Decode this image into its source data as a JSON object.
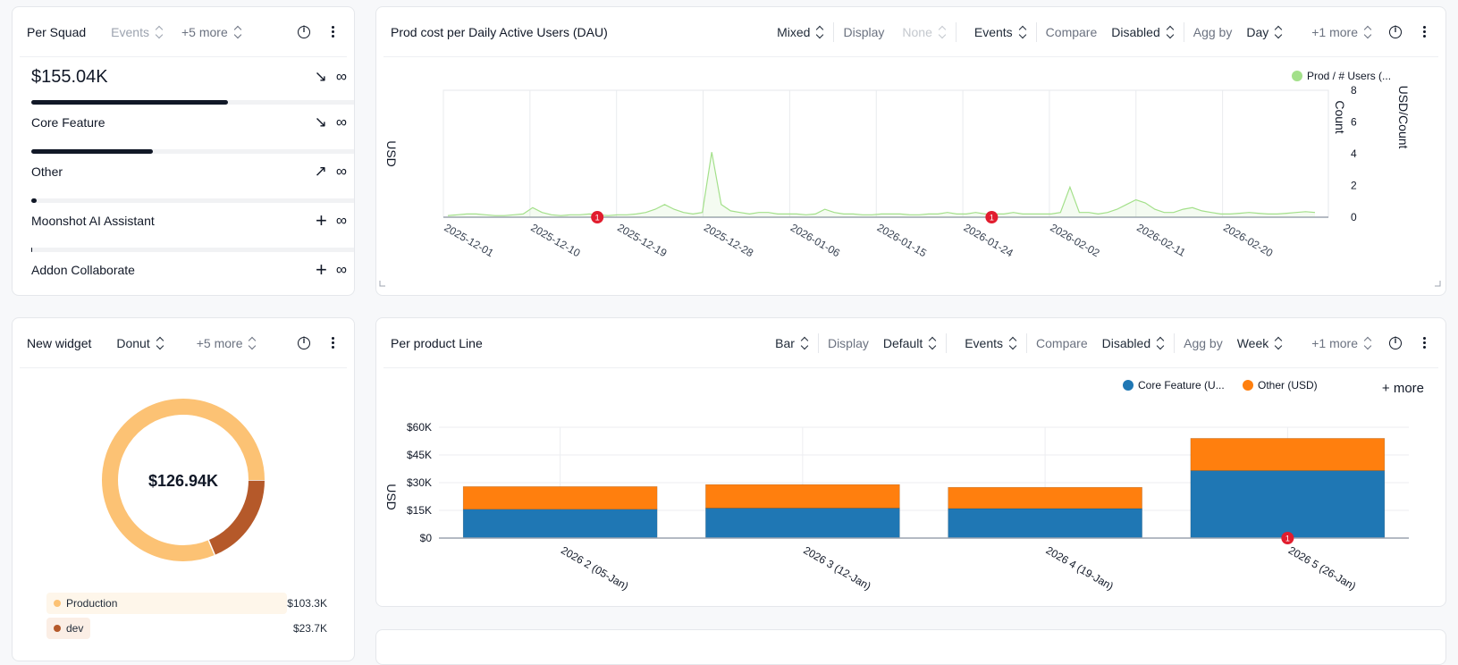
{
  "squad": {
    "title": "Per Squad",
    "events_label": "Events",
    "more_label": "+5 more",
    "total": "$155.04K",
    "total_icon": "arrow-down-right-icon",
    "infinity": "∞",
    "items": [
      {
        "label": "Core Feature",
        "share": 0.6,
        "trend": "arrow-down-right-icon"
      },
      {
        "label": "Other",
        "share": 0.37,
        "trend": "arrow-up-right-icon"
      },
      {
        "label": "Moonshot AI Assistant",
        "share": 0.01,
        "trend": "plus-icon"
      },
      {
        "label": "Addon Collaborate",
        "share": 0.0,
        "trend": "plus-icon"
      }
    ]
  },
  "dau": {
    "title": "Prod cost per Daily Active Users (DAU)",
    "type_label": "Mixed",
    "display_label": "Display",
    "display_value": "None",
    "events_label": "Events",
    "compare_label": "Compare",
    "compare_value": "Disabled",
    "agg_label": "Agg by",
    "agg_value": "Day",
    "more_label": "+1 more"
  },
  "widget": {
    "title": "New widget",
    "type_label": "Donut",
    "more_label": "+5 more",
    "center_value": "$126.94K",
    "legend": [
      {
        "label": "Production",
        "value": "$103.3K",
        "color": "#fcc274",
        "bg": "#fef6ea"
      },
      {
        "label": "dev",
        "value": "$23.7K",
        "color": "#b5592a",
        "bg": "#fbeee5"
      }
    ]
  },
  "product": {
    "title": "Per product Line",
    "type_label": "Bar",
    "display_label": "Display",
    "display_value": "Default",
    "events_label": "Events",
    "compare_label": "Compare",
    "compare_value": "Disabled",
    "agg_label": "Agg by",
    "agg_value": "Week",
    "more_label": "+1 more",
    "legend_more": "+ more"
  },
  "chart_data": [
    {
      "type": "line",
      "ylabel": "USD",
      "y2label": "Count",
      "y3label": "USD/Count",
      "legend": [
        "Prod / # Users (..."
      ],
      "legend_placement": "top-right",
      "series_color": "#a3e08a",
      "y2_ticks": [
        "0",
        "2",
        "4",
        "6",
        "8"
      ],
      "y2lim": [
        0,
        8
      ],
      "x_ticks": [
        "2025-12-01",
        "2025-12-10",
        "2025-12-19",
        "2025-12-28",
        "2026-01-06",
        "2026-01-15",
        "2026-01-24",
        "2026-02-02",
        "2026-02-11",
        "2026-02-20"
      ],
      "x_start": "2025-12-01",
      "values": [
        0.1,
        0.15,
        0.2,
        0.2,
        0.15,
        0.1,
        0.1,
        0.15,
        0.2,
        0.6,
        0.3,
        0.15,
        0.1,
        0.15,
        0.15,
        0.2,
        0.15,
        0.1,
        0.15,
        0.15,
        0.2,
        0.3,
        0.5,
        0.8,
        0.5,
        0.3,
        0.2,
        0.3,
        4.1,
        0.8,
        0.4,
        0.3,
        0.2,
        0.3,
        0.3,
        0.2,
        0.2,
        0.2,
        0.15,
        0.2,
        0.5,
        0.3,
        0.2,
        0.2,
        0.15,
        0.15,
        0.2,
        0.2,
        0.2,
        0.15,
        0.15,
        0.2,
        0.2,
        0.3,
        0.2,
        0.2,
        0.3,
        0.2,
        0.2,
        0.2,
        0.3,
        0.2,
        0.2,
        0.2,
        0.2,
        0.3,
        1.9,
        0.3,
        0.3,
        0.2,
        0.3,
        0.5,
        0.8,
        1.1,
        0.9,
        0.5,
        0.3,
        0.3,
        0.5,
        0.6,
        0.4,
        0.3,
        0.2,
        0.2,
        0.25,
        0.3,
        0.25,
        0.2,
        0.2,
        0.25,
        0.3,
        0.35,
        0.3
      ],
      "annotations": [
        {
          "x": "2025-12-17",
          "label": "1"
        },
        {
          "x": "2026-01-27",
          "label": "1"
        }
      ],
      "grid": true
    },
    {
      "type": "bar",
      "stacked": true,
      "ylabel": "USD",
      "categories": [
        "2026 2 (05-Jan)",
        "2026 3 (12-Jan)",
        "2026 4 (19-Jan)",
        "2026 5 (26-Jan)"
      ],
      "y_ticks": [
        "$0",
        "$15K",
        "$30K",
        "$45K",
        "$60K"
      ],
      "ylim": [
        0,
        60000
      ],
      "legend_placement": "top-right",
      "series": [
        {
          "name": "Core Feature (U...",
          "color": "#1f77b4",
          "values": [
            15600,
            16200,
            16000,
            36500
          ]
        },
        {
          "name": "Other (USD)",
          "color": "#ff7f0e",
          "values": [
            12300,
            12800,
            11500,
            17500
          ]
        }
      ],
      "annotations": [
        {
          "category": "2026 5 (26-Jan)",
          "label": "1"
        }
      ],
      "grid": true
    }
  ]
}
